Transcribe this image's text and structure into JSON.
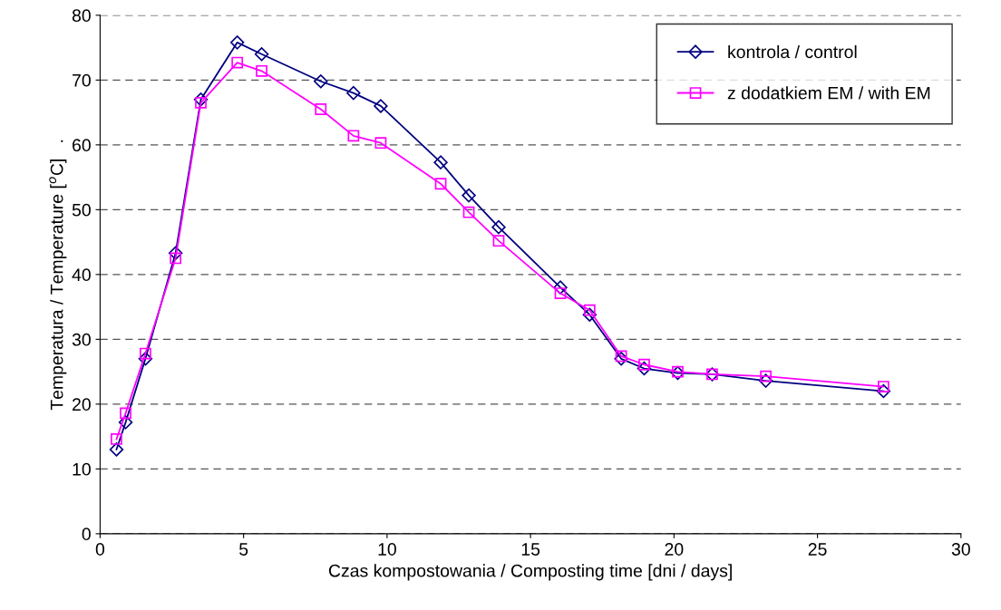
{
  "chart_data": {
    "type": "line",
    "xlabel": "Czas kompostowania / Composting time [dni / days]",
    "ylabel": "Temperatura / Temperature [$^{o}$C]   .",
    "x": [
      0.57,
      0.89,
      1.58,
      2.63,
      3.51,
      4.78,
      5.63,
      7.69,
      8.83,
      9.78,
      11.87,
      12.85,
      13.89,
      16.04,
      17.06,
      18.16,
      18.96,
      20.13,
      21.33,
      23.2,
      27.3
    ],
    "series": [
      {
        "name": "kontrola / control",
        "color": "#000080",
        "marker": "diamond",
        "values": [
          13,
          17.2,
          27,
          43.3,
          67,
          75.8,
          74,
          69.8,
          68,
          66,
          57.3,
          52.2,
          47.3,
          38,
          33.8,
          27,
          25.5,
          24.8,
          24.6,
          23.6,
          22
        ]
      },
      {
        "name": "z dodatkiem EM / with EM",
        "color": "#ff00ff",
        "marker": "square",
        "values": [
          14.6,
          18.6,
          27.8,
          42.5,
          66.5,
          72.7,
          71.4,
          65.5,
          61.4,
          60.3,
          54,
          49.6,
          45.2,
          37.1,
          34.5,
          27.4,
          26.1,
          25,
          24.6,
          24.3,
          22.7
        ]
      }
    ],
    "xlim": [
      0,
      30
    ],
    "xticks": [
      0,
      5,
      10,
      15,
      20,
      25,
      30
    ],
    "ylim": [
      0,
      80
    ],
    "yticks": [
      0,
      10,
      20,
      30,
      40,
      50,
      60,
      70,
      80
    ],
    "grid": "y",
    "legend": "top right",
    "line_style": "solid"
  }
}
